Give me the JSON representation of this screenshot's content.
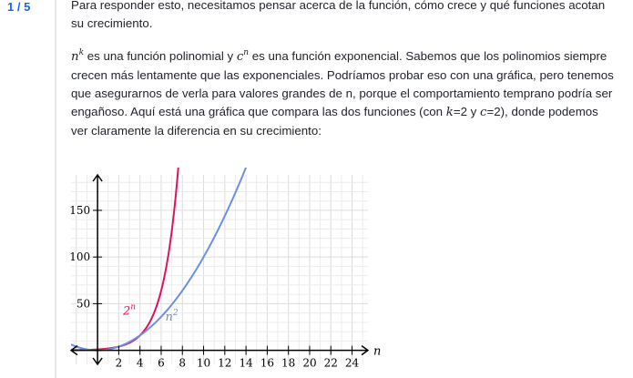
{
  "step_counter": "1 / 5",
  "intro": "Para responder esto, necesitamos pensar acerca de la función, cómo crece y qué funciones acotan su crecimiento.",
  "explanation": {
    "var_n": "n",
    "exp_k": "k",
    "seg1": " es una función polinomial y ",
    "var_c": "c",
    "exp_n": "n",
    "seg2": " es una función exponencial. Sabemos que los polinomios siempre crecen más lentamente que las exponenciales. Podríamos probar eso con una gráfica, pero tenemos que asegurarnos de verla para valores grandes de n, porque el comportamiento temprano podría ser engañoso. Aquí está una gráfica que compara las dos funciones (con ",
    "var_k": "k",
    "seg3": "=2 y ",
    "var_c2": "c",
    "seg4": "=2), donde podemos ver claramente la diferencia en su crecimiento:"
  },
  "chart_data": {
    "type": "line",
    "x_axis": {
      "label": "n",
      "ticks": [
        2,
        4,
        6,
        8,
        10,
        12,
        14,
        16,
        18,
        20,
        22,
        24
      ],
      "range": [
        -2.5,
        25.5
      ]
    },
    "y_axis": {
      "label": "",
      "ticks": [
        50,
        100,
        150
      ],
      "range": [
        -15,
        188
      ]
    },
    "grid": true,
    "series": [
      {
        "name": "2^n",
        "label_base": "2",
        "label_exp": "n",
        "color": "#e0115f",
        "function": "2^n"
      },
      {
        "name": "n^2",
        "label_base": "n",
        "label_exp": "2",
        "color": "#6b8fe3",
        "function": "n^2"
      }
    ]
  }
}
